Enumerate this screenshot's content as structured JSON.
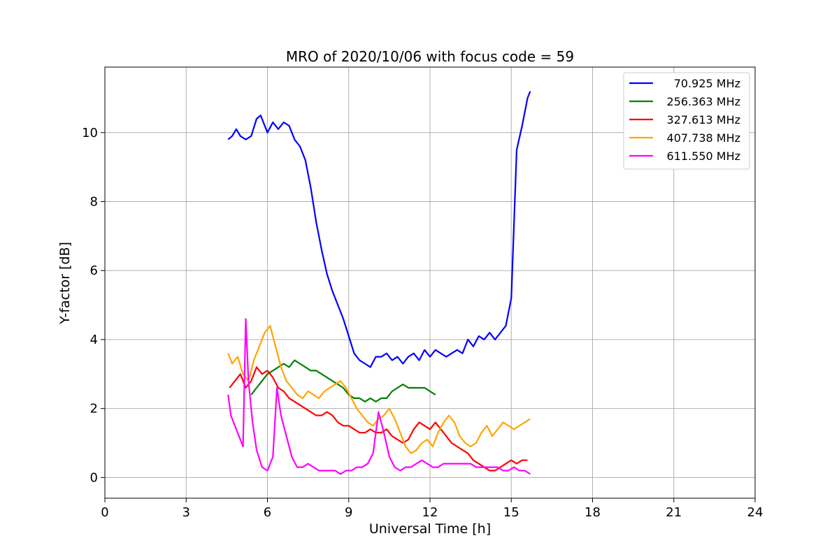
{
  "chart_data": {
    "type": "line",
    "title": "MRO of 2020/10/06 with focus code = 59",
    "xlabel": "Universal Time [h]",
    "ylabel": "Y-factor [dB]",
    "xlim": [
      0,
      24
    ],
    "ylim": [
      -0.6,
      11.9
    ],
    "xticks": [
      "0",
      "3",
      "6",
      "9",
      "12",
      "15",
      "18",
      "21",
      "24"
    ],
    "xtick_values": [
      0,
      3,
      6,
      9,
      12,
      15,
      18,
      21,
      24
    ],
    "yticks": [
      "0",
      "2",
      "4",
      "6",
      "8",
      "10"
    ],
    "ytick_values": [
      0,
      2,
      4,
      6,
      8,
      10
    ],
    "grid": true,
    "legend_position": "top-right",
    "series": [
      {
        "name": "70.925 MHz",
        "color": "#0000ff",
        "x": [
          4.55,
          4.7,
          4.85,
          5.0,
          5.2,
          5.4,
          5.6,
          5.75,
          5.9,
          6.0,
          6.2,
          6.4,
          6.6,
          6.8,
          7.0,
          7.2,
          7.4,
          7.6,
          7.8,
          8.0,
          8.2,
          8.4,
          8.6,
          8.8,
          9.0,
          9.2,
          9.4,
          9.6,
          9.8,
          10.0,
          10.2,
          10.4,
          10.6,
          10.8,
          11.0,
          11.2,
          11.4,
          11.6,
          11.8,
          12.0,
          12.2,
          12.4,
          12.6,
          12.8,
          13.0,
          13.2,
          13.4,
          13.6,
          13.8,
          14.0,
          14.2,
          14.4,
          14.6,
          14.8,
          15.0,
          15.2,
          15.4,
          15.6,
          15.7
        ],
        "y": [
          9.8,
          9.9,
          10.1,
          9.9,
          9.8,
          9.9,
          10.4,
          10.5,
          10.2,
          10.0,
          10.3,
          10.1,
          10.3,
          10.2,
          9.8,
          9.6,
          9.2,
          8.4,
          7.4,
          6.6,
          5.9,
          5.4,
          5.0,
          4.6,
          4.1,
          3.6,
          3.4,
          3.3,
          3.2,
          3.5,
          3.5,
          3.6,
          3.4,
          3.5,
          3.3,
          3.5,
          3.6,
          3.4,
          3.7,
          3.5,
          3.7,
          3.6,
          3.5,
          3.6,
          3.7,
          3.6,
          4.0,
          3.8,
          4.1,
          4.0,
          4.2,
          4.0,
          4.2,
          4.4,
          5.2,
          9.5,
          10.2,
          11.0,
          11.2
        ]
      },
      {
        "name": "256.363 MHz",
        "color": "#008000",
        "x": [
          5.4,
          5.6,
          5.8,
          6.0,
          6.2,
          6.4,
          6.6,
          6.8,
          7.0,
          7.2,
          7.4,
          7.6,
          7.8,
          8.0,
          8.2,
          8.4,
          8.6,
          8.8,
          9.0,
          9.2,
          9.4,
          9.6,
          9.8,
          10.0,
          10.2,
          10.4,
          10.6,
          10.8,
          11.0,
          11.2,
          11.4,
          11.6,
          11.8,
          12.0,
          12.2
        ],
        "y": [
          2.4,
          2.6,
          2.8,
          3.0,
          3.1,
          3.2,
          3.3,
          3.2,
          3.4,
          3.3,
          3.2,
          3.1,
          3.1,
          3.0,
          2.9,
          2.8,
          2.7,
          2.6,
          2.4,
          2.3,
          2.3,
          2.2,
          2.3,
          2.2,
          2.3,
          2.3,
          2.5,
          2.6,
          2.7,
          2.6,
          2.6,
          2.6,
          2.6,
          2.5,
          2.4
        ]
      },
      {
        "name": "327.613 MHz",
        "color": "#ff0000",
        "x": [
          4.6,
          4.8,
          5.0,
          5.2,
          5.4,
          5.6,
          5.8,
          6.0,
          6.2,
          6.4,
          6.6,
          6.8,
          7.0,
          7.2,
          7.4,
          7.6,
          7.8,
          8.0,
          8.2,
          8.4,
          8.6,
          8.8,
          9.0,
          9.2,
          9.4,
          9.6,
          9.8,
          10.0,
          10.2,
          10.4,
          10.6,
          10.8,
          11.0,
          11.2,
          11.4,
          11.6,
          11.8,
          12.0,
          12.2,
          12.4,
          12.6,
          12.8,
          13.0,
          13.2,
          13.4,
          13.6,
          13.8,
          14.0,
          14.2,
          14.4,
          14.6,
          14.8,
          15.0,
          15.2,
          15.4,
          15.6
        ],
        "y": [
          2.6,
          2.8,
          3.0,
          2.6,
          2.8,
          3.2,
          3.0,
          3.1,
          2.9,
          2.6,
          2.5,
          2.3,
          2.2,
          2.1,
          2.0,
          1.9,
          1.8,
          1.8,
          1.9,
          1.8,
          1.6,
          1.5,
          1.5,
          1.4,
          1.3,
          1.3,
          1.4,
          1.3,
          1.3,
          1.4,
          1.2,
          1.1,
          1.0,
          1.1,
          1.4,
          1.6,
          1.5,
          1.4,
          1.6,
          1.4,
          1.2,
          1.0,
          0.9,
          0.8,
          0.7,
          0.5,
          0.4,
          0.3,
          0.2,
          0.2,
          0.3,
          0.4,
          0.5,
          0.4,
          0.5,
          0.5
        ]
      },
      {
        "name": "407.738 MHz",
        "color": "#ffa500",
        "x": [
          4.55,
          4.7,
          4.9,
          5.1,
          5.3,
          5.5,
          5.7,
          5.9,
          6.1,
          6.3,
          6.5,
          6.7,
          6.9,
          7.1,
          7.3,
          7.5,
          7.7,
          7.9,
          8.1,
          8.3,
          8.5,
          8.7,
          8.9,
          9.1,
          9.3,
          9.5,
          9.7,
          9.9,
          10.1,
          10.3,
          10.5,
          10.7,
          10.9,
          11.1,
          11.3,
          11.5,
          11.7,
          11.9,
          12.1,
          12.3,
          12.5,
          12.7,
          12.9,
          13.1,
          13.3,
          13.5,
          13.7,
          13.9,
          14.1,
          14.3,
          14.5,
          14.7,
          14.9,
          15.1,
          15.3,
          15.5,
          15.7
        ],
        "y": [
          3.6,
          3.3,
          3.5,
          3.0,
          2.8,
          3.4,
          3.8,
          4.2,
          4.4,
          3.8,
          3.2,
          2.8,
          2.6,
          2.4,
          2.3,
          2.5,
          2.4,
          2.3,
          2.5,
          2.6,
          2.7,
          2.8,
          2.6,
          2.3,
          2.0,
          1.8,
          1.6,
          1.5,
          1.7,
          1.8,
          2.0,
          1.7,
          1.3,
          0.9,
          0.7,
          0.8,
          1.0,
          1.1,
          0.9,
          1.3,
          1.6,
          1.8,
          1.6,
          1.2,
          1.0,
          0.9,
          1.0,
          1.3,
          1.5,
          1.2,
          1.4,
          1.6,
          1.5,
          1.4,
          1.5,
          1.6,
          1.7
        ]
      },
      {
        "name": "611.550 MHz",
        "color": "#ff00ff",
        "x": [
          4.55,
          4.65,
          4.8,
          4.95,
          5.1,
          5.2,
          5.3,
          5.45,
          5.6,
          5.8,
          6.0,
          6.2,
          6.35,
          6.5,
          6.7,
          6.9,
          7.1,
          7.3,
          7.5,
          7.7,
          7.9,
          8.1,
          8.3,
          8.5,
          8.7,
          8.9,
          9.1,
          9.3,
          9.5,
          9.7,
          9.9,
          10.1,
          10.3,
          10.5,
          10.7,
          10.9,
          11.1,
          11.3,
          11.5,
          11.7,
          11.9,
          12.1,
          12.3,
          12.5,
          12.7,
          12.9,
          13.1,
          13.3,
          13.5,
          13.7,
          13.9,
          14.1,
          14.3,
          14.5,
          14.7,
          14.9,
          15.1,
          15.3,
          15.5,
          15.7
        ],
        "y": [
          2.4,
          1.8,
          1.5,
          1.2,
          0.9,
          4.6,
          2.8,
          1.6,
          0.8,
          0.3,
          0.2,
          0.6,
          2.6,
          1.8,
          1.2,
          0.6,
          0.3,
          0.3,
          0.4,
          0.3,
          0.2,
          0.2,
          0.2,
          0.2,
          0.1,
          0.2,
          0.2,
          0.3,
          0.3,
          0.4,
          0.7,
          1.9,
          1.3,
          0.6,
          0.3,
          0.2,
          0.3,
          0.3,
          0.4,
          0.5,
          0.4,
          0.3,
          0.3,
          0.4,
          0.4,
          0.4,
          0.4,
          0.4,
          0.4,
          0.3,
          0.3,
          0.3,
          0.3,
          0.3,
          0.2,
          0.2,
          0.3,
          0.2,
          0.2,
          0.1
        ]
      }
    ]
  }
}
